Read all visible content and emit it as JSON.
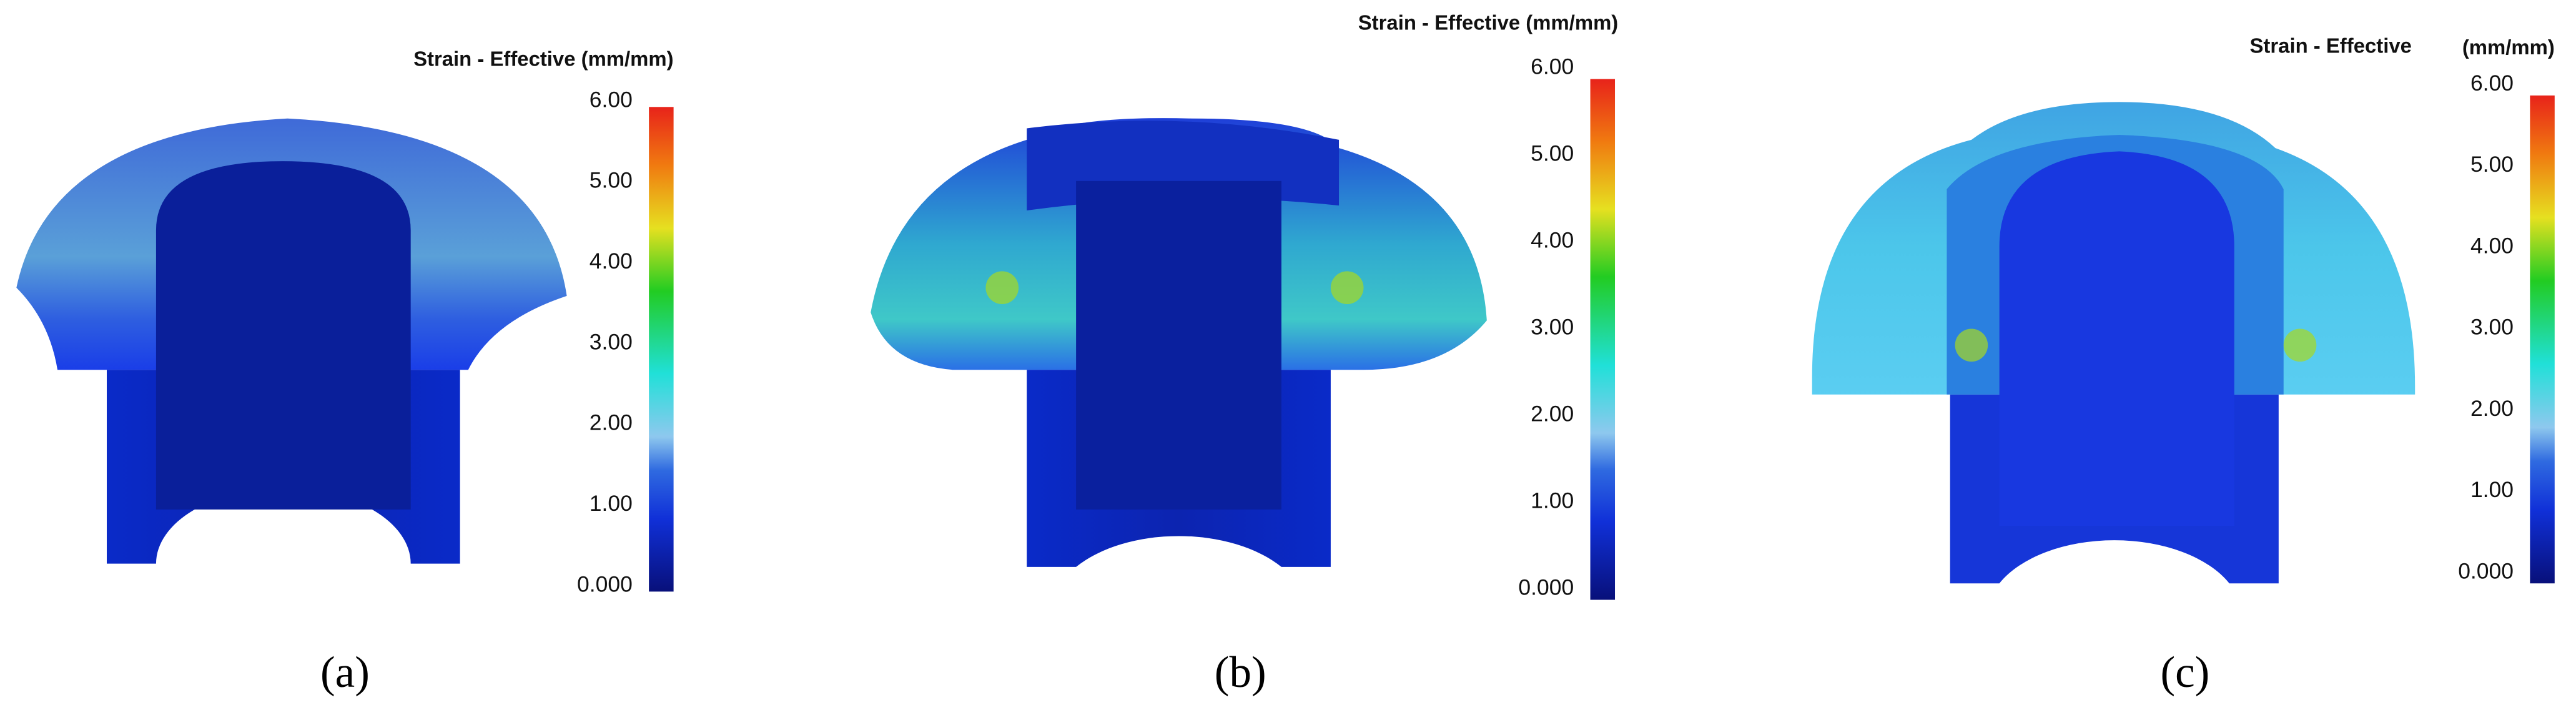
{
  "panels": [
    {
      "title": "Strain - Effective (mm/mm)",
      "ticks": [
        "6.00",
        "5.00",
        "4.00",
        "3.00",
        "2.00",
        "1.00",
        "0.000"
      ],
      "caption": "(a)"
    },
    {
      "title": "Strain - Effective (mm/mm)",
      "ticks": [
        "6.00",
        "5.00",
        "4.00",
        "3.00",
        "2.00",
        "1.00",
        "0.000"
      ],
      "caption": "(b)"
    },
    {
      "title": "Strain - Effective",
      "unit": "(mm/mm)",
      "ticks": [
        "6.00",
        "5.00",
        "4.00",
        "3.00",
        "2.00",
        "1.00",
        "0.000"
      ],
      "caption": "(c)"
    }
  ]
}
